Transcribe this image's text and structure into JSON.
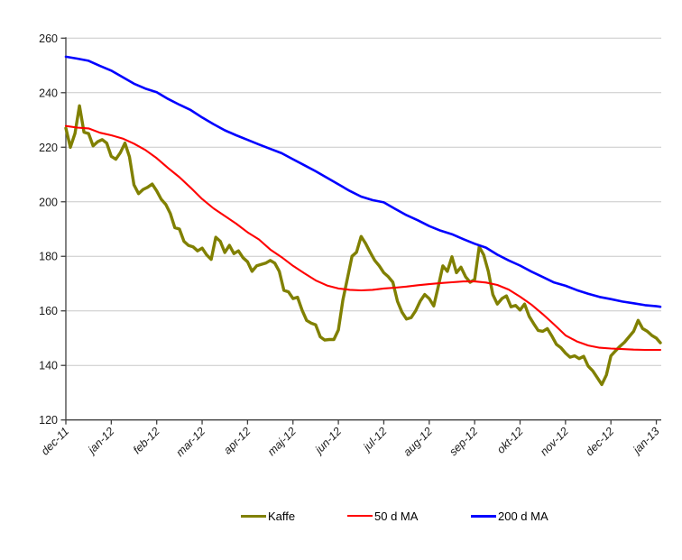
{
  "chart_data": {
    "type": "line",
    "title": "",
    "x_axis": {
      "tick_labels": [
        "dec-11",
        "jan-12",
        "feb-12",
        "mar-12",
        "apr-12",
        "maj-12",
        "jun-12",
        "jul-12",
        "aug-12",
        "sep-12",
        "okt-12",
        "nov-12",
        "dec-12",
        "jan-13"
      ],
      "unit": "month"
    },
    "y_axis": {
      "ticks": [
        120,
        140,
        160,
        180,
        200,
        220,
        240,
        260
      ],
      "ylim": [
        120,
        260
      ]
    },
    "grid": "horizontal",
    "grid_color": "#c8c8c8",
    "axis_color": "#404040",
    "label_color": "#1a1a1a",
    "legend_position": "bottom",
    "series": [
      {
        "name": "Kaffe",
        "color": "#808000",
        "stroke_width": 3.4,
        "x_start": 0,
        "x_step": 0.1,
        "values": [
          227,
          220,
          225,
          235.2,
          225.5,
          225,
          220.5,
          222,
          222.8,
          221.5,
          216.7,
          215.6,
          218,
          221.5,
          216.5,
          206.2,
          203,
          204.5,
          205.3,
          206.5,
          204,
          200.9,
          199,
          195.7,
          190.5,
          190,
          185.5,
          184,
          183.5,
          182,
          183,
          180.5,
          178.9,
          187,
          185.5,
          181.4,
          184,
          181,
          182,
          179.5,
          178,
          174.5,
          176.5,
          177,
          177.5,
          178.5,
          177.5,
          174.5,
          167.5,
          167,
          164.5,
          165,
          160.3,
          156.5,
          155.5,
          154.9,
          150.5,
          149.3,
          149.5,
          149.5,
          153,
          164,
          172,
          180,
          181.5,
          187.3,
          184.7,
          181.5,
          178.5,
          176.5,
          174,
          172.5,
          170.5,
          163.5,
          159.5,
          157,
          157.5,
          160,
          163.5,
          166,
          164.5,
          161.8,
          169,
          176.5,
          174.5,
          179.8,
          174,
          176,
          172.5,
          170.5,
          171.5,
          183.5,
          180.5,
          174.5,
          166,
          162.5,
          164.5,
          165.5,
          161.5,
          162,
          160.3,
          162.5,
          158,
          155.3,
          152.8,
          152.5,
          153.5,
          150.8,
          147.7,
          146.5,
          144.5,
          143,
          143.5,
          142.5,
          143.3,
          139.7,
          138,
          135.5,
          133,
          136.5,
          143.5,
          145.3,
          147,
          148.5,
          150.5,
          152.5,
          156.5,
          153.5,
          152.5,
          151,
          150,
          148.3
        ]
      },
      {
        "name": "50 d MA",
        "color": "#ff0000",
        "stroke_width": 2.1,
        "x_start": 0,
        "x_step": 0.25,
        "values": [
          227.8,
          227.2,
          226.9,
          225.3,
          224.4,
          223.2,
          221.3,
          219,
          216,
          212.4,
          209,
          205.1,
          201,
          197.6,
          194.8,
          192,
          188.8,
          186.2,
          182.5,
          179.7,
          176.5,
          173.8,
          171.2,
          169.3,
          168.2,
          167.7,
          167.5,
          167.7,
          168.2,
          168.5,
          168.9,
          169.4,
          169.8,
          170.2,
          170.5,
          170.8,
          170.8,
          170.4,
          169.5,
          167.8,
          165.2,
          162.3,
          158.8,
          155,
          151,
          148.8,
          147.3,
          146.5,
          146.2,
          146,
          145.8,
          145.7,
          145.7,
          145.7
        ]
      },
      {
        "name": "200 d MA",
        "color": "#0000ff",
        "stroke_width": 2.6,
        "x_start": 0,
        "x_step": 0.25,
        "values": [
          253.2,
          252.5,
          251.7,
          249.8,
          248.1,
          245.7,
          243.3,
          241.5,
          240.2,
          237.7,
          235.6,
          233.6,
          230.9,
          228.5,
          226.2,
          224.4,
          222.7,
          221,
          219.4,
          217.8,
          215.6,
          213.4,
          211.2,
          208.8,
          206.4,
          204,
          201.9,
          200.6,
          199.8,
          197.4,
          195.1,
          193.2,
          191.1,
          189.4,
          188.1,
          186.3,
          184.6,
          183.2,
          180.6,
          178.5,
          176.6,
          174.4,
          172.4,
          170.4,
          169.2,
          167.6,
          166.3,
          165.1,
          164.3,
          163.4,
          162.8,
          162.1,
          161.7,
          161.5
        ]
      }
    ]
  }
}
